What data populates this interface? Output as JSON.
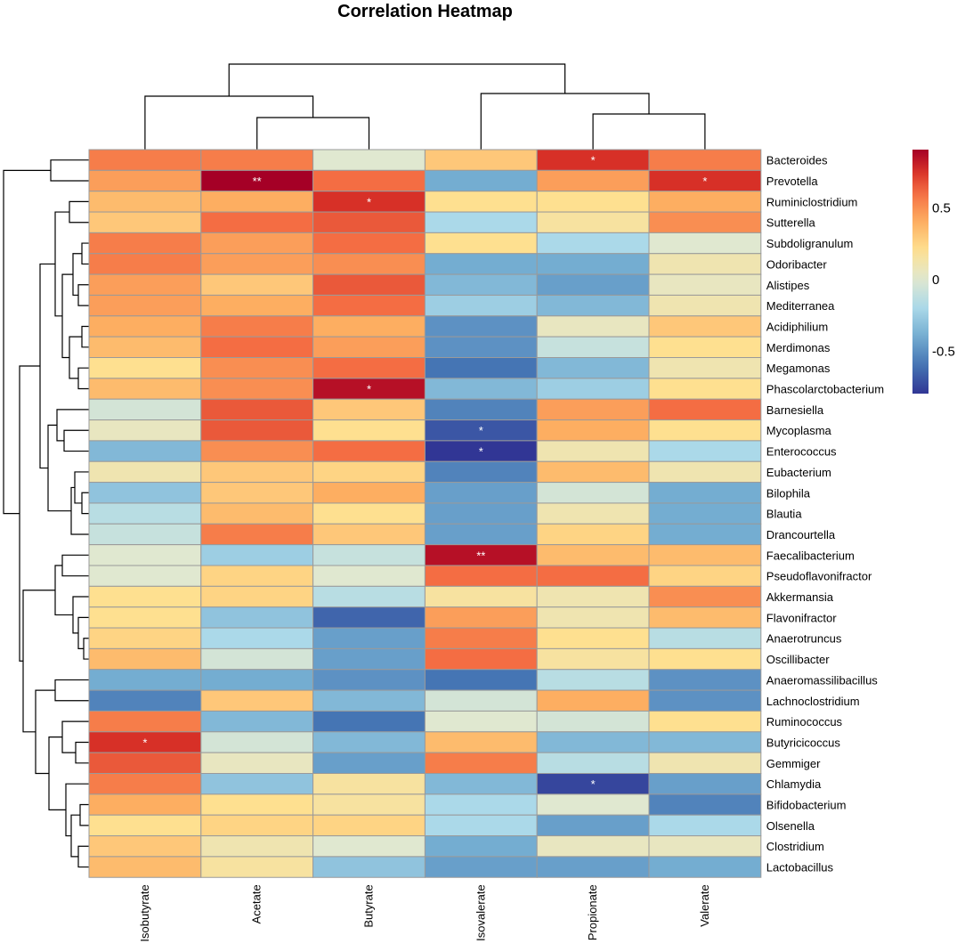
{
  "chart_data": {
    "type": "heatmap",
    "title": "Correlation Heatmap",
    "columns": [
      "Isobutyrate",
      "Acetate",
      "Butyrate",
      "Isovalerate",
      "Propionate",
      "Valerate"
    ],
    "rows": [
      "Bacteroides",
      "Prevotella",
      "Ruminiclostridium",
      "Sutterella",
      "Subdoligranulum",
      "Odoribacter",
      "Alistipes",
      "Mediterranea",
      "Acidiphilium",
      "Merdimonas",
      "Megamonas",
      "Phascolarctobacterium",
      "Barnesiella",
      "Mycoplasma",
      "Enterococcus",
      "Eubacterium",
      "Bilophila",
      "Blautia",
      "Drancourtella",
      "Faecalibacterium",
      "Pseudoflavonifractor",
      "Akkermansia",
      "Flavonifractor",
      "Anaerotruncus",
      "Oscillibacter",
      "Anaeromassilibacillus",
      "Lachnoclostridium",
      "Ruminococcus",
      "Butyricicoccus",
      "Gemmiger",
      "Chlamydia",
      "Bifidobacterium",
      "Olsenella",
      "Clostridium",
      "Lactobacillus"
    ],
    "values": [
      [
        0.55,
        0.55,
        0.0,
        0.3,
        0.75,
        0.55
      ],
      [
        0.45,
        0.9,
        0.6,
        -0.4,
        0.45,
        0.75
      ],
      [
        0.35,
        0.4,
        0.75,
        0.2,
        0.2,
        0.4
      ],
      [
        0.3,
        0.6,
        0.65,
        -0.2,
        0.15,
        0.5
      ],
      [
        0.55,
        0.45,
        0.6,
        0.2,
        -0.2,
        0.0
      ],
      [
        0.55,
        0.45,
        0.5,
        -0.4,
        -0.4,
        0.1
      ],
      [
        0.45,
        0.3,
        0.65,
        -0.35,
        -0.45,
        0.05
      ],
      [
        0.45,
        0.4,
        0.6,
        -0.25,
        -0.35,
        0.1
      ],
      [
        0.4,
        0.55,
        0.4,
        -0.5,
        0.05,
        0.3
      ],
      [
        0.35,
        0.6,
        0.45,
        -0.5,
        -0.1,
        0.2
      ],
      [
        0.2,
        0.5,
        0.6,
        -0.6,
        -0.35,
        0.1
      ],
      [
        0.35,
        0.5,
        0.85,
        -0.35,
        -0.25,
        0.2
      ],
      [
        -0.05,
        0.65,
        0.3,
        -0.55,
        0.45,
        0.6
      ],
      [
        0.05,
        0.65,
        0.2,
        -0.7,
        0.4,
        0.2
      ],
      [
        -0.35,
        0.5,
        0.6,
        -0.8,
        0.1,
        -0.2
      ],
      [
        0.1,
        0.3,
        0.25,
        -0.55,
        0.35,
        0.1
      ],
      [
        -0.3,
        0.3,
        0.4,
        -0.45,
        -0.05,
        -0.4
      ],
      [
        -0.15,
        0.35,
        0.2,
        -0.45,
        0.1,
        -0.4
      ],
      [
        -0.1,
        0.55,
        0.3,
        -0.45,
        0.25,
        -0.4
      ],
      [
        0.0,
        -0.25,
        -0.1,
        0.85,
        0.35,
        0.35
      ],
      [
        0.0,
        0.25,
        0.0,
        0.6,
        0.6,
        0.25
      ],
      [
        0.2,
        0.25,
        -0.15,
        0.15,
        0.1,
        0.5
      ],
      [
        0.2,
        -0.3,
        -0.65,
        0.45,
        0.1,
        0.35
      ],
      [
        0.25,
        -0.2,
        -0.45,
        0.55,
        0.2,
        -0.15
      ],
      [
        0.35,
        -0.05,
        -0.45,
        0.6,
        0.15,
        0.2
      ],
      [
        -0.4,
        -0.4,
        -0.5,
        -0.6,
        -0.15,
        -0.5
      ],
      [
        -0.55,
        0.3,
        -0.35,
        -0.05,
        0.4,
        -0.5
      ],
      [
        0.55,
        -0.35,
        -0.6,
        0.0,
        -0.05,
        0.2
      ],
      [
        0.75,
        -0.05,
        -0.35,
        0.35,
        -0.35,
        -0.35
      ],
      [
        0.65,
        0.05,
        -0.45,
        0.55,
        -0.15,
        0.1
      ],
      [
        0.55,
        -0.3,
        0.15,
        -0.35,
        -0.75,
        -0.45
      ],
      [
        0.4,
        0.2,
        0.15,
        -0.2,
        0.0,
        -0.55
      ],
      [
        0.2,
        0.25,
        0.25,
        -0.2,
        -0.45,
        -0.2
      ],
      [
        0.3,
        0.1,
        0.0,
        -0.4,
        0.05,
        0.05
      ],
      [
        0.35,
        0.15,
        -0.3,
        -0.45,
        -0.45,
        -0.4
      ]
    ],
    "annotations": [
      {
        "row": "Bacteroides",
        "column": "Propionate",
        "text": "*"
      },
      {
        "row": "Prevotella",
        "column": "Acetate",
        "text": "**"
      },
      {
        "row": "Prevotella",
        "column": "Valerate",
        "text": "*"
      },
      {
        "row": "Ruminiclostridium",
        "column": "Butyrate",
        "text": "*"
      },
      {
        "row": "Phascolarctobacterium",
        "column": "Butyrate",
        "text": "*"
      },
      {
        "row": "Mycoplasma",
        "column": "Isovalerate",
        "text": "*"
      },
      {
        "row": "Enterococcus",
        "column": "Isovalerate",
        "text": "*"
      },
      {
        "row": "Faecalibacterium",
        "column": "Isovalerate",
        "text": "**"
      },
      {
        "row": "Butyricicoccus",
        "column": "Isobutyrate",
        "text": "*"
      },
      {
        "row": "Chlamydia",
        "column": "Propionate",
        "text": "*"
      }
    ],
    "color_scale": {
      "range": [
        -0.8,
        0.9
      ],
      "ticks": [
        {
          "value": 0.5,
          "label": "0.5"
        },
        {
          "value": 0,
          "label": "0"
        },
        {
          "value": -0.5,
          "label": "-0.5"
        }
      ],
      "low_color": "#313695",
      "mid_color": "#FFFFBF",
      "high_color": "#A50026"
    },
    "dendrograms": {
      "columns": "clustered",
      "rows": "clustered"
    }
  }
}
